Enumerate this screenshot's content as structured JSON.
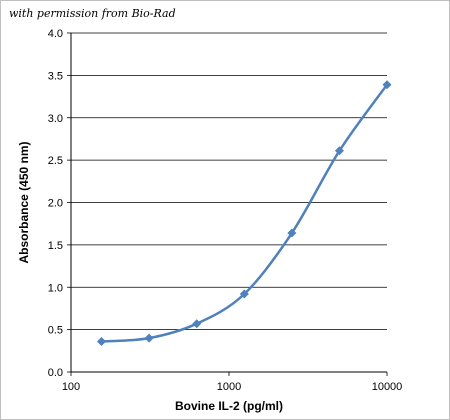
{
  "watermark": "with permission from Bio-Rad",
  "chart_data": {
    "type": "line",
    "title": "",
    "xlabel": "Bovine IL-2 (pg/ml)",
    "ylabel": "Absorbance (450 nm)",
    "x_scale": "log",
    "xlim": [
      100,
      10000
    ],
    "ylim": [
      0,
      4.0
    ],
    "x_ticks": [
      "100",
      "1000",
      "10000"
    ],
    "y_ticks": [
      "0.0",
      "0.5",
      "1.0",
      "1.5",
      "2.0",
      "2.5",
      "3.0",
      "3.5",
      "4.0"
    ],
    "grid": "horizontal",
    "legend": "none",
    "series_color": "#4f81bd",
    "series": [
      {
        "x": [
          156,
          312,
          625,
          1250,
          2500,
          5000,
          10000
        ],
        "y": [
          0.36,
          0.4,
          0.57,
          0.92,
          1.64,
          2.61,
          3.39
        ]
      }
    ]
  }
}
